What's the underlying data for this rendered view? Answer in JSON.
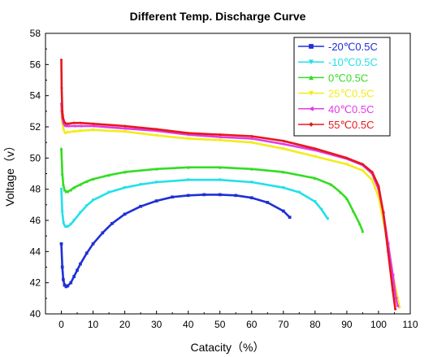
{
  "chart_data": {
    "type": "line",
    "title": "Different Temp. Discharge Curve",
    "xlabel": "Catacity（%）",
    "ylabel": "Voltage（v）",
    "xlim": [
      -5,
      110
    ],
    "ylim": [
      40,
      58
    ],
    "xticks": [
      0,
      10,
      20,
      30,
      40,
      50,
      60,
      70,
      80,
      90,
      100,
      110
    ],
    "yticks": [
      40,
      42,
      44,
      46,
      48,
      50,
      52,
      54,
      56,
      58
    ],
    "legend_position": "top-right",
    "grid": false,
    "series": [
      {
        "name": "-20℃0.5C",
        "color": "#1f2fd6",
        "marker": "square",
        "x": [
          0,
          0.3,
          0.6,
          1,
          1.5,
          2,
          3,
          4,
          5,
          6,
          8,
          10,
          13,
          16,
          20,
          25,
          30,
          35,
          40,
          45,
          50,
          55,
          60,
          65,
          70,
          72
        ],
        "y": [
          44.5,
          43.0,
          42.2,
          41.85,
          41.75,
          41.8,
          42.0,
          42.4,
          42.8,
          43.2,
          43.9,
          44.5,
          45.2,
          45.8,
          46.4,
          46.9,
          47.25,
          47.5,
          47.6,
          47.65,
          47.65,
          47.6,
          47.45,
          47.15,
          46.6,
          46.2
        ]
      },
      {
        "name": "-10℃0.5C",
        "color": "#22e0e8",
        "marker": "triangle-down",
        "x": [
          0,
          0.3,
          0.7,
          1.2,
          2,
          3,
          4,
          6,
          8,
          10,
          15,
          20,
          25,
          30,
          40,
          50,
          60,
          70,
          75,
          80,
          82,
          84
        ],
        "y": [
          48.0,
          46.5,
          45.8,
          45.6,
          45.6,
          45.75,
          46.0,
          46.5,
          46.95,
          47.3,
          47.8,
          48.1,
          48.3,
          48.45,
          48.6,
          48.6,
          48.45,
          48.1,
          47.8,
          47.2,
          46.7,
          46.1
        ]
      },
      {
        "name": "0℃0.5C",
        "color": "#33dd22",
        "marker": "triangle-up",
        "x": [
          0,
          0.3,
          0.6,
          1,
          1.5,
          2,
          3,
          4,
          6,
          8,
          10,
          15,
          20,
          30,
          40,
          50,
          60,
          70,
          80,
          85,
          88,
          90,
          92,
          94,
          95
        ],
        "y": [
          50.6,
          49.0,
          48.3,
          47.95,
          47.85,
          47.85,
          47.95,
          48.1,
          48.3,
          48.5,
          48.65,
          48.9,
          49.1,
          49.3,
          49.4,
          49.4,
          49.3,
          49.1,
          48.7,
          48.3,
          47.8,
          47.4,
          46.6,
          45.8,
          45.3
        ]
      },
      {
        "name": "25℃0.5C",
        "color": "#f2ec1c",
        "marker": "triangle-down",
        "x": [
          0,
          0.3,
          0.7,
          1.2,
          2,
          4,
          6,
          10,
          20,
          30,
          40,
          50,
          60,
          70,
          80,
          90,
          95,
          98,
          100,
          102,
          104,
          106,
          106.6
        ],
        "y": [
          53.0,
          52.3,
          51.8,
          51.6,
          51.65,
          51.7,
          51.75,
          51.8,
          51.7,
          51.45,
          51.25,
          51.15,
          51.0,
          50.6,
          50.1,
          49.6,
          49.2,
          48.6,
          47.5,
          45.5,
          43.0,
          41.0,
          40.4
        ]
      },
      {
        "name": "40℃0.5C",
        "color": "#e23be6",
        "marker": "triangle-left",
        "x": [
          0,
          0.3,
          0.7,
          1.2,
          2,
          4,
          6,
          10,
          20,
          30,
          40,
          50,
          60,
          70,
          80,
          90,
          95,
          98,
          100,
          101.5,
          103,
          104.5,
          105.5,
          106
        ],
        "y": [
          53.5,
          52.6,
          52.2,
          52.05,
          52.05,
          52.05,
          52.05,
          52.05,
          51.9,
          51.75,
          51.5,
          51.35,
          51.25,
          50.9,
          50.5,
          49.95,
          49.55,
          49.0,
          48.0,
          46.5,
          44.5,
          42.5,
          41.0,
          40.5
        ]
      },
      {
        "name": "55℃0.5C",
        "color": "#e8171c",
        "marker": "diamond",
        "x": [
          0,
          0.1,
          0.3,
          0.6,
          1,
          1.5,
          2,
          4,
          6,
          10,
          20,
          30,
          40,
          50,
          60,
          70,
          80,
          90,
          95,
          98,
          100,
          101.5,
          103,
          104.5,
          105.3
        ],
        "y": [
          56.3,
          54.5,
          53.0,
          52.5,
          52.3,
          52.2,
          52.2,
          52.25,
          52.25,
          52.2,
          52.05,
          51.85,
          51.6,
          51.5,
          51.4,
          51.1,
          50.6,
          50.0,
          49.6,
          49.1,
          48.2,
          46.5,
          44.0,
          41.5,
          40.3
        ]
      }
    ]
  }
}
